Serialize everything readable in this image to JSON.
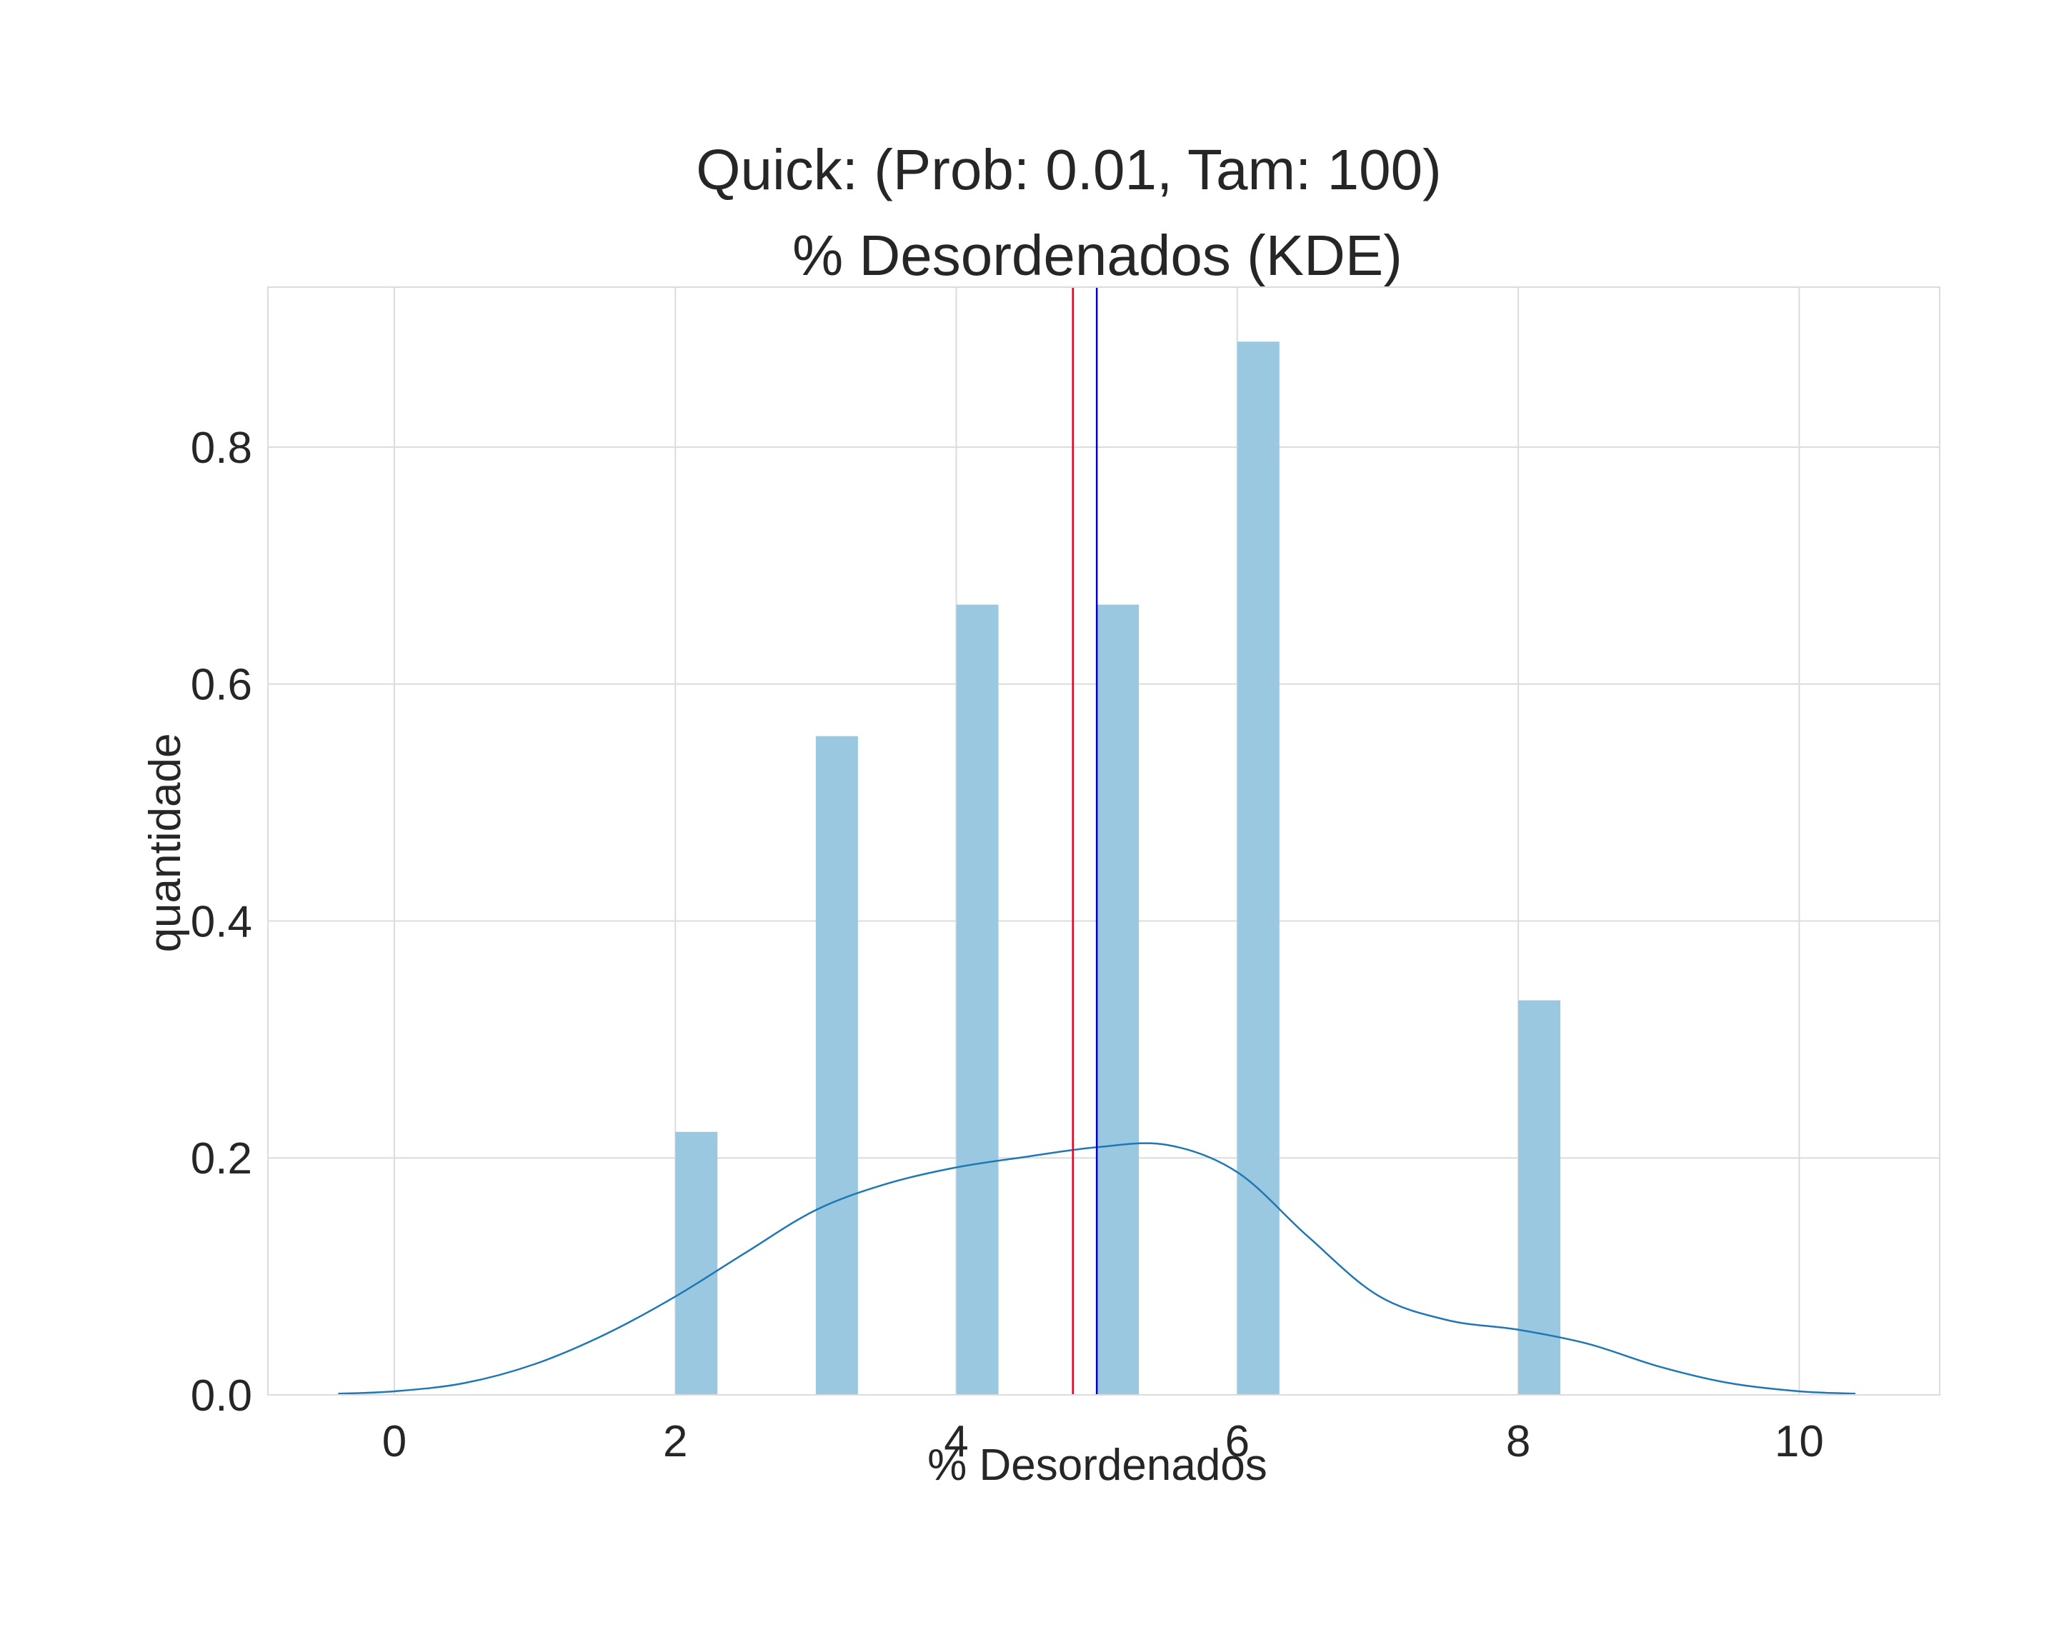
{
  "chart_data": {
    "type": "bar",
    "title": [
      "Quick: (Prob: 0.01, Tam: 100)",
      "% Desordenados (KDE)"
    ],
    "xlabel": "% Desordenados",
    "ylabel": "quantidade",
    "xlim": [
      -0.9,
      11.0
    ],
    "ylim": [
      0,
      0.935
    ],
    "xticks": [
      0,
      2,
      4,
      6,
      8,
      10
    ],
    "xtick_labels": [
      "0",
      "2",
      "4",
      "6",
      "8",
      "10"
    ],
    "yticks": [
      0.0,
      0.2,
      0.4,
      0.6,
      0.8
    ],
    "ytick_labels": [
      "0.0",
      "0.2",
      "0.4",
      "0.6",
      "0.8"
    ],
    "grid": true,
    "bars": {
      "bin_width": 0.3,
      "color": "#9ac8e0",
      "x": [
        2,
        3,
        4,
        5,
        6,
        8
      ],
      "values": [
        0.222,
        0.556,
        0.667,
        0.667,
        0.889,
        0.333
      ]
    },
    "kde": {
      "color": "#1f77b4",
      "x": [
        -0.4,
        0.0,
        0.5,
        1.0,
        1.5,
        2.0,
        2.5,
        3.0,
        3.5,
        4.0,
        4.5,
        5.0,
        5.5,
        6.0,
        6.5,
        7.0,
        7.5,
        8.0,
        8.5,
        9.0,
        9.5,
        10.0,
        10.4
      ],
      "y": [
        0.001,
        0.003,
        0.01,
        0.026,
        0.051,
        0.083,
        0.12,
        0.156,
        0.178,
        0.192,
        0.201,
        0.209,
        0.211,
        0.188,
        0.134,
        0.084,
        0.063,
        0.055,
        0.043,
        0.024,
        0.01,
        0.003,
        0.001
      ]
    },
    "vlines": [
      {
        "x": 4.83,
        "color": "#e8001c"
      },
      {
        "x": 5.0,
        "color": "#0000c8"
      }
    ]
  }
}
